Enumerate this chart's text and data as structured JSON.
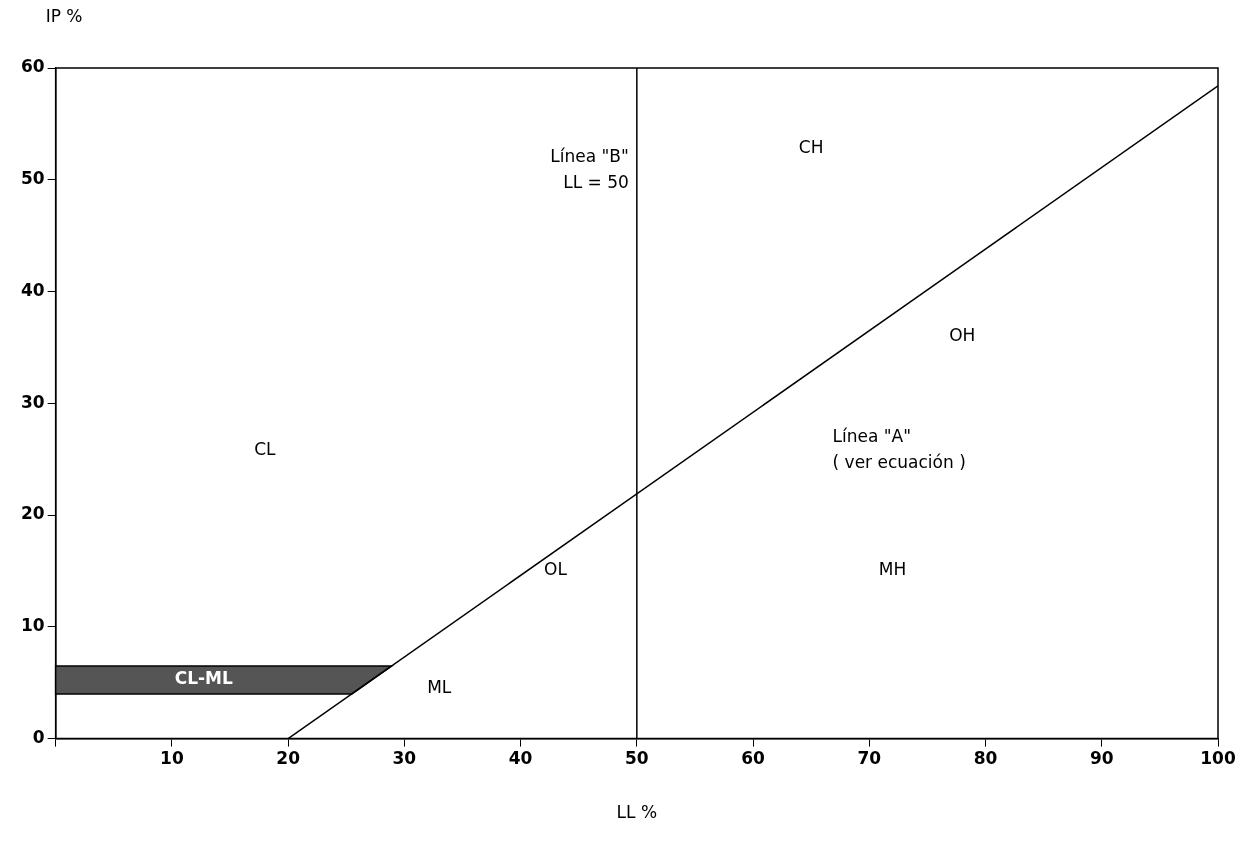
{
  "chart_data": {
    "type": "line",
    "xlabel": "LL %",
    "ylabel": "IP %",
    "x": [
      20,
      100
    ],
    "series": [
      {
        "color": "#000000",
        "values": [
          0,
          58.4
        ]
      }
    ],
    "xlim": [
      0,
      100
    ],
    "xticks": [
      {
        "value": 0,
        "label": null
      },
      10,
      20,
      30,
      40,
      50,
      60,
      70,
      80,
      90,
      100
    ],
    "ylim": [
      0,
      60
    ],
    "yticks": [
      0,
      10,
      20,
      30,
      40,
      50,
      60
    ],
    "grid": false,
    "legend": false,
    "marker": "none",
    "line_style": "solid",
    "ref_lines": [
      {
        "axis": "x",
        "value": 50,
        "label": "Línea \"B\"\nLL = 50",
        "color": "#000000"
      }
    ],
    "bands": [
      {
        "axis": "y",
        "from": 4,
        "to": 6.5,
        "label": "CL-ML",
        "color": "#555555"
      }
    ],
    "annotations": [
      "CL",
      "CH",
      "OH",
      "Línea \"A\"\n( ver ecuación )",
      "OL",
      "MH",
      "ML"
    ]
  }
}
